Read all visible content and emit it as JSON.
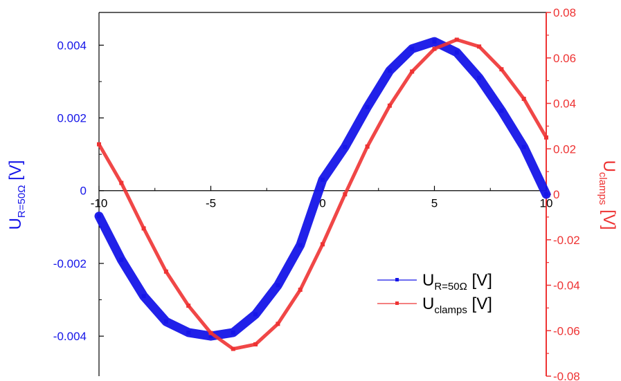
{
  "chart_data": {
    "type": "line",
    "title": "",
    "xlabel": "",
    "xlim": [
      -10,
      10
    ],
    "x_ticks": [
      "-10",
      "-5",
      "0",
      "5",
      "10"
    ],
    "y_left": {
      "label_main": "U",
      "label_sub": "R=50Ω",
      "label_unit": " [V]",
      "color": "#1515e8",
      "ylim": [
        -0.0051,
        0.0049
      ],
      "ticks": [
        "-0.004",
        "-0.002",
        "0",
        "0.002",
        "0.004"
      ]
    },
    "y_right": {
      "label_main": "U",
      "label_sub": "clamps",
      "label_unit": " [V]",
      "color": "#ee3333",
      "ylim": [
        -0.08,
        0.08
      ],
      "ticks": [
        "-0.08",
        "-0.06",
        "-0.04",
        "-0.02",
        "0",
        "0.02",
        "0.04",
        "0.06",
        "0.08"
      ]
    },
    "grid": false,
    "legend_position": "bottom-right",
    "series": [
      {
        "name_main": "U",
        "name_sub": "R=50Ω",
        "name_unit": " [V]",
        "axis": "left",
        "color": "#1515e8",
        "x": [
          -10,
          -9,
          -8,
          -7,
          -6,
          -5,
          -4,
          -3,
          -2,
          -1,
          0,
          1,
          2,
          3,
          4,
          5,
          6,
          7,
          8,
          9,
          10
        ],
        "y": [
          -0.0007,
          -0.0019,
          -0.0029,
          -0.0036,
          -0.0039,
          -0.004,
          -0.0039,
          -0.0034,
          -0.0026,
          -0.0015,
          0.0003,
          0.0012,
          0.0023,
          0.0033,
          0.0039,
          0.0041,
          0.0038,
          0.0031,
          0.0022,
          0.0012,
          -0.0001
        ]
      },
      {
        "name_main": "U",
        "name_sub": "clamps",
        "name_unit": " [V]",
        "axis": "right",
        "color": "#ee3333",
        "x": [
          -10,
          -9,
          -8,
          -7,
          -6,
          -5,
          -4,
          -3,
          -2,
          -1,
          0,
          1,
          2,
          3,
          4,
          5,
          6,
          7,
          8,
          9,
          10
        ],
        "y": [
          0.022,
          0.005,
          -0.015,
          -0.034,
          -0.049,
          -0.061,
          -0.068,
          -0.066,
          -0.057,
          -0.042,
          -0.022,
          0.0,
          0.021,
          0.039,
          0.054,
          0.064,
          0.068,
          0.065,
          0.055,
          0.042,
          0.025
        ]
      }
    ]
  }
}
